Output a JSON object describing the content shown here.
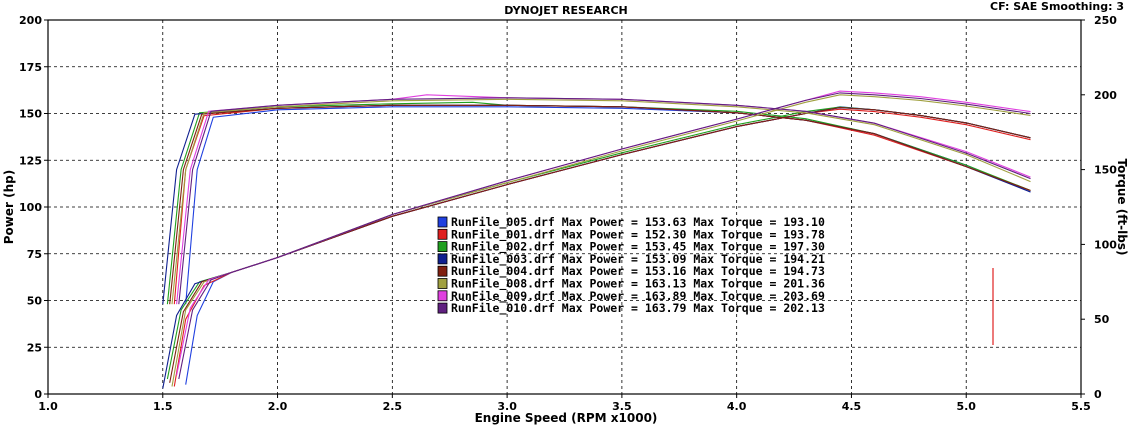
{
  "chart_data": {
    "type": "line",
    "title": "DYNOJET RESEARCH",
    "corner_label": "CF: SAE  Smoothing: 3",
    "xlabel": "Engine Speed (RPM x1000)",
    "ylabel_left": "Power (hp)",
    "ylabel_right": "Torque (ft-lbs)",
    "xlim": [
      1.0,
      5.5
    ],
    "ylim_left": [
      0,
      200
    ],
    "ylim_right": [
      0,
      250
    ],
    "x_ticks": [
      "1.0",
      "1.5",
      "2.0",
      "2.5",
      "3.0",
      "3.5",
      "4.0",
      "4.5",
      "5.0",
      "5.5"
    ],
    "y_ticks_left": [
      "0",
      "25",
      "50",
      "75",
      "100",
      "125",
      "150",
      "175",
      "200"
    ],
    "y_ticks_right": [
      "0",
      "50",
      "100",
      "150",
      "200",
      "250"
    ],
    "grid": true,
    "series": [
      {
        "name": "RunFile_005.drf",
        "color": "#2040e0",
        "max_power": "153.63",
        "max_torque": "193.10",
        "power": [
          [
            1.6,
            5
          ],
          [
            1.65,
            42
          ],
          [
            1.72,
            60
          ],
          [
            1.8,
            65
          ],
          [
            2.0,
            73
          ],
          [
            2.5,
            95
          ],
          [
            3.0,
            112
          ],
          [
            3.5,
            128
          ],
          [
            4.0,
            143
          ],
          [
            4.3,
            150
          ],
          [
            4.45,
            153.6
          ],
          [
            4.6,
            152
          ],
          [
            4.8,
            149
          ],
          [
            5.0,
            145
          ],
          [
            5.28,
            137
          ]
        ],
        "torque": [
          [
            1.6,
            60
          ],
          [
            1.65,
            150
          ],
          [
            1.72,
            185
          ],
          [
            2.0,
            190
          ],
          [
            2.5,
            192
          ],
          [
            3.0,
            192
          ],
          [
            3.5,
            191
          ],
          [
            4.0,
            188
          ],
          [
            4.3,
            183
          ],
          [
            4.6,
            174
          ],
          [
            5.0,
            153
          ],
          [
            5.28,
            135
          ]
        ]
      },
      {
        "name": "RunFile_001.drf",
        "color": "#e02020",
        "max_power": "152.30",
        "max_torque": "193.78",
        "power": [
          [
            1.55,
            4
          ],
          [
            1.6,
            40
          ],
          [
            1.68,
            58
          ],
          [
            1.8,
            65
          ],
          [
            2.0,
            73
          ],
          [
            2.5,
            95
          ],
          [
            3.0,
            112
          ],
          [
            3.5,
            128
          ],
          [
            4.0,
            143
          ],
          [
            4.3,
            150
          ],
          [
            4.45,
            152.3
          ],
          [
            4.6,
            151
          ],
          [
            4.8,
            148
          ],
          [
            5.0,
            144
          ],
          [
            5.28,
            136
          ]
        ],
        "torque": [
          [
            1.55,
            60
          ],
          [
            1.6,
            150
          ],
          [
            1.68,
            186
          ],
          [
            2.0,
            191
          ],
          [
            2.5,
            193
          ],
          [
            3.0,
            193
          ],
          [
            3.5,
            192
          ],
          [
            4.0,
            188
          ],
          [
            4.3,
            183
          ],
          [
            4.6,
            173
          ],
          [
            5.0,
            152
          ],
          [
            5.28,
            136
          ]
        ]
      },
      {
        "name": "RunFile_002.drf",
        "color": "#20a020",
        "max_power": "153.45",
        "max_torque": "197.30",
        "power": [
          [
            1.52,
            8
          ],
          [
            1.58,
            45
          ],
          [
            1.66,
            60
          ],
          [
            1.8,
            65
          ],
          [
            2.0,
            73
          ],
          [
            2.5,
            96
          ],
          [
            3.0,
            113
          ],
          [
            3.5,
            129
          ],
          [
            4.0,
            144
          ],
          [
            4.3,
            151
          ],
          [
            4.45,
            153.4
          ],
          [
            4.6,
            152
          ],
          [
            4.8,
            149
          ],
          [
            5.0,
            145
          ],
          [
            5.28,
            137
          ]
        ],
        "torque": [
          [
            1.52,
            60
          ],
          [
            1.58,
            150
          ],
          [
            1.66,
            188
          ],
          [
            2.0,
            192
          ],
          [
            2.5,
            194
          ],
          [
            2.85,
            195
          ],
          [
            3.0,
            193
          ],
          [
            3.5,
            192
          ],
          [
            4.0,
            189
          ],
          [
            4.3,
            184
          ],
          [
            4.6,
            174
          ],
          [
            5.0,
            153
          ],
          [
            5.28,
            136
          ]
        ]
      },
      {
        "name": "RunFile_003.drf",
        "color": "#102090",
        "max_power": "153.09",
        "max_torque": "194.21",
        "power": [
          [
            1.5,
            3
          ],
          [
            1.56,
            42
          ],
          [
            1.64,
            59
          ],
          [
            1.8,
            65
          ],
          [
            2.0,
            73
          ],
          [
            2.5,
            95
          ],
          [
            3.0,
            112
          ],
          [
            3.5,
            128
          ],
          [
            4.0,
            143
          ],
          [
            4.3,
            150
          ],
          [
            4.45,
            153.1
          ],
          [
            4.6,
            152
          ],
          [
            4.8,
            149
          ],
          [
            5.0,
            145
          ],
          [
            5.28,
            137
          ]
        ],
        "torque": [
          [
            1.5,
            60
          ],
          [
            1.56,
            150
          ],
          [
            1.64,
            187
          ],
          [
            2.0,
            191
          ],
          [
            2.5,
            193
          ],
          [
            3.0,
            193
          ],
          [
            3.5,
            192
          ],
          [
            4.0,
            188
          ],
          [
            4.3,
            183
          ],
          [
            4.6,
            174
          ],
          [
            5.0,
            152
          ],
          [
            5.28,
            135
          ]
        ]
      },
      {
        "name": "RunFile_004.drf",
        "color": "#802010",
        "max_power": "153.16",
        "max_torque": "194.73",
        "power": [
          [
            1.53,
            6
          ],
          [
            1.59,
            44
          ],
          [
            1.67,
            60
          ],
          [
            1.8,
            65
          ],
          [
            2.0,
            73
          ],
          [
            2.5,
            95
          ],
          [
            3.0,
            112
          ],
          [
            3.5,
            128
          ],
          [
            4.0,
            143
          ],
          [
            4.3,
            150
          ],
          [
            4.45,
            153.2
          ],
          [
            4.6,
            152
          ],
          [
            4.8,
            149
          ],
          [
            5.0,
            145
          ],
          [
            5.28,
            137
          ]
        ],
        "torque": [
          [
            1.53,
            60
          ],
          [
            1.59,
            150
          ],
          [
            1.67,
            187
          ],
          [
            2.0,
            191
          ],
          [
            2.5,
            193
          ],
          [
            3.0,
            193
          ],
          [
            3.5,
            192
          ],
          [
            4.0,
            188
          ],
          [
            4.3,
            183
          ],
          [
            4.6,
            174
          ],
          [
            5.0,
            152
          ],
          [
            5.28,
            136
          ]
        ]
      },
      {
        "name": "RunFile_008.drf",
        "color": "#a0a040",
        "max_power": "163.13",
        "max_torque": "201.36",
        "power": [
          [
            1.54,
            4
          ],
          [
            1.6,
            45
          ],
          [
            1.68,
            60
          ],
          [
            1.8,
            65
          ],
          [
            2.0,
            73
          ],
          [
            2.5,
            96
          ],
          [
            3.0,
            113
          ],
          [
            3.5,
            130
          ],
          [
            4.0,
            146
          ],
          [
            4.3,
            156
          ],
          [
            4.45,
            160
          ],
          [
            4.6,
            159
          ],
          [
            4.8,
            157
          ],
          [
            5.0,
            154
          ],
          [
            5.28,
            149
          ]
        ],
        "torque": [
          [
            1.54,
            60
          ],
          [
            1.6,
            150
          ],
          [
            1.68,
            188
          ],
          [
            2.0,
            192
          ],
          [
            2.5,
            196
          ],
          [
            3.0,
            197
          ],
          [
            3.5,
            196
          ],
          [
            4.0,
            192
          ],
          [
            4.3,
            188
          ],
          [
            4.6,
            180
          ],
          [
            5.0,
            160
          ],
          [
            5.28,
            142
          ]
        ]
      },
      {
        "name": "RunFile_009.drf",
        "color": "#e040e0",
        "max_power": "163.89",
        "max_torque": "203.69",
        "power": [
          [
            1.56,
            10
          ],
          [
            1.62,
            46
          ],
          [
            1.7,
            61
          ],
          [
            1.8,
            65
          ],
          [
            2.0,
            73
          ],
          [
            2.5,
            96
          ],
          [
            3.0,
            114
          ],
          [
            3.5,
            131
          ],
          [
            4.0,
            147
          ],
          [
            4.3,
            157
          ],
          [
            4.45,
            162
          ],
          [
            4.6,
            161
          ],
          [
            4.8,
            159
          ],
          [
            5.0,
            156
          ],
          [
            5.28,
            151
          ]
        ],
        "torque": [
          [
            1.56,
            60
          ],
          [
            1.62,
            150
          ],
          [
            1.7,
            189
          ],
          [
            2.0,
            193
          ],
          [
            2.5,
            197
          ],
          [
            2.65,
            200
          ],
          [
            3.0,
            198
          ],
          [
            3.5,
            197
          ],
          [
            4.0,
            193
          ],
          [
            4.3,
            189
          ],
          [
            4.6,
            181
          ],
          [
            5.0,
            162
          ],
          [
            5.28,
            145
          ]
        ]
      },
      {
        "name": "RunFile_010.drf",
        "color": "#602080",
        "max_power": "163.79",
        "max_torque": "202.13",
        "power": [
          [
            1.57,
            8
          ],
          [
            1.63,
            45
          ],
          [
            1.71,
            61
          ],
          [
            1.8,
            65
          ],
          [
            2.0,
            73
          ],
          [
            2.5,
            96
          ],
          [
            3.0,
            114
          ],
          [
            3.5,
            131
          ],
          [
            4.0,
            147
          ],
          [
            4.3,
            157
          ],
          [
            4.45,
            161
          ],
          [
            4.6,
            160
          ],
          [
            4.8,
            158
          ],
          [
            5.0,
            155
          ],
          [
            5.28,
            150
          ]
        ],
        "torque": [
          [
            1.57,
            60
          ],
          [
            1.63,
            150
          ],
          [
            1.71,
            189
          ],
          [
            2.0,
            193
          ],
          [
            2.5,
            197
          ],
          [
            3.0,
            198
          ],
          [
            3.5,
            197
          ],
          [
            4.0,
            193
          ],
          [
            4.3,
            189
          ],
          [
            4.6,
            181
          ],
          [
            5.0,
            161
          ],
          [
            5.28,
            144
          ]
        ]
      }
    ]
  }
}
